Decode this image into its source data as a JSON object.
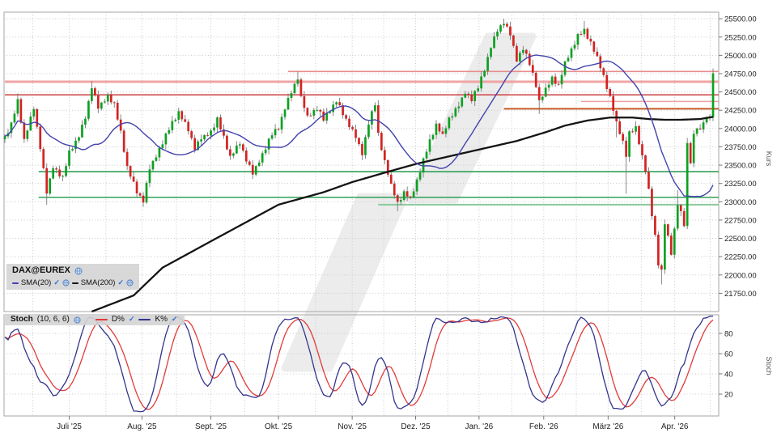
{
  "main_legend": {
    "title": "DAX@EUREX",
    "items": [
      {
        "label": "SMA(20)",
        "swatch": "#4343AE"
      },
      {
        "label": "SMA(200)",
        "swatch": "#141414"
      }
    ]
  },
  "stoch_legend": {
    "title": "Stoch",
    "params": "(10, 6, 6)",
    "items": [
      {
        "label": "D%",
        "swatch": "#E23B3B"
      },
      {
        "label": "K%",
        "swatch": "#34348C"
      }
    ]
  },
  "axes": {
    "kurs_label": "Kurs",
    "stoch_label": "Stoch",
    "x_tick_labels": [
      "Juli '25",
      "Aug. '25",
      "Sept. '25",
      "Okt. '25",
      "Nov. '25",
      "Dez. '25",
      "Jan. '26",
      "Feb. '26",
      "März '26",
      "Apr. '26"
    ]
  },
  "colors": {
    "candle_up": "#0CA122",
    "candle_down": "#D42222",
    "wick": "#7a7a7a",
    "sma20": "#4343AE",
    "sma200": "#141414",
    "stoch_d": "#E23B3B",
    "stoch_k": "#34348C",
    "grid": "#C9C9C9",
    "border": "#A6A6A6",
    "tick_text": "#222222",
    "axis_title": "#555555",
    "watermark": "#ECECEC"
  },
  "chart_data": {
    "type": "candlestick",
    "title": "DAX@EUREX",
    "x_axis": {
      "n_days": 221,
      "major_ticks": [
        {
          "d": 20.0,
          "label": "Juli '25"
        },
        {
          "d": 42.6,
          "label": "Aug. '25"
        },
        {
          "d": 64.0,
          "label": "Sept. '25"
        },
        {
          "d": 85.0,
          "label": "Okt. '25"
        },
        {
          "d": 107.9,
          "label": "Nov. '25"
        },
        {
          "d": 127.6,
          "label": "Dez. '25"
        },
        {
          "d": 147.3,
          "label": "Jan. '26"
        },
        {
          "d": 167.4,
          "label": "Feb. '26"
        },
        {
          "d": 187.4,
          "label": "März '26"
        },
        {
          "d": 208.1,
          "label": "Apr. '26"
        }
      ],
      "minor_grid_d": [
        8.7,
        31.4,
        53.3,
        74.5,
        96.5,
        117.7,
        137.6,
        157.5,
        177.5,
        197.7,
        219.1
      ]
    },
    "panels": [
      {
        "name": "price",
        "ylabel": "Kurs",
        "ylim": [
          21500,
          25590
        ],
        "y_tick_step": 250,
        "y_ticks": [
          "25500.00",
          "25250.00",
          "25000.00",
          "24750.00",
          "24500.00",
          "24250.00",
          "24000.00",
          "23750.00",
          "23500.00",
          "23250.00",
          "23000.00",
          "22750.00",
          "22500.00",
          "22250.00",
          "22000.00",
          "21750.00"
        ],
        "candles": {
          "close_waypoints": [
            [
              0,
              23880
            ],
            [
              2,
              24050
            ],
            [
              4,
              24380
            ],
            [
              6,
              23850
            ],
            [
              9,
              24280
            ],
            [
              11,
              23750
            ],
            [
              13,
              23120
            ],
            [
              15,
              23480
            ],
            [
              18,
              23320
            ],
            [
              20,
              23680
            ],
            [
              23,
              23900
            ],
            [
              25,
              24150
            ],
            [
              27,
              24580
            ],
            [
              29,
              24280
            ],
            [
              32,
              24450
            ],
            [
              34,
              24320
            ],
            [
              36,
              23950
            ],
            [
              38,
              23480
            ],
            [
              41,
              23130
            ],
            [
              43,
              23020
            ],
            [
              45,
              23450
            ],
            [
              48,
              23720
            ],
            [
              50,
              23900
            ],
            [
              52,
              24080
            ],
            [
              54,
              24230
            ],
            [
              57,
              23980
            ],
            [
              59,
              23740
            ],
            [
              61,
              23860
            ],
            [
              64,
              23960
            ],
            [
              66,
              24120
            ],
            [
              68,
              23880
            ],
            [
              70,
              23620
            ],
            [
              73,
              23800
            ],
            [
              75,
              23580
            ],
            [
              77,
              23380
            ],
            [
              80,
              23650
            ],
            [
              83,
              23920
            ],
            [
              85,
              24020
            ],
            [
              87,
              24280
            ],
            [
              89,
              24500
            ],
            [
              91,
              24700
            ],
            [
              92,
              24420
            ],
            [
              94,
              24160
            ],
            [
              97,
              24280
            ],
            [
              99,
              24120
            ],
            [
              101,
              24260
            ],
            [
              103,
              24380
            ],
            [
              105,
              24200
            ],
            [
              107,
              24050
            ],
            [
              109,
              23880
            ],
            [
              111,
              23660
            ],
            [
              113,
              24080
            ],
            [
              115,
              24330
            ],
            [
              116,
              23920
            ],
            [
              118,
              23560
            ],
            [
              120,
              23220
            ],
            [
              122,
              22990
            ],
            [
              124,
              23120
            ],
            [
              126,
              23040
            ],
            [
              128,
              23290
            ],
            [
              130,
              23560
            ],
            [
              132,
              23830
            ],
            [
              134,
              24060
            ],
            [
              136,
              23900
            ],
            [
              138,
              24140
            ],
            [
              141,
              24310
            ],
            [
              143,
              24500
            ],
            [
              145,
              24400
            ],
            [
              147,
              24560
            ],
            [
              149,
              24820
            ],
            [
              151,
              25120
            ],
            [
              153,
              25340
            ],
            [
              155,
              25460
            ],
            [
              157,
              25280
            ],
            [
              159,
              24940
            ],
            [
              161,
              25100
            ],
            [
              163,
              24880
            ],
            [
              165,
              24600
            ],
            [
              166,
              24380
            ],
            [
              168,
              24530
            ],
            [
              170,
              24700
            ],
            [
              172,
              24580
            ],
            [
              174,
              24900
            ],
            [
              176,
              25080
            ],
            [
              178,
              25260
            ],
            [
              180,
              25340
            ],
            [
              182,
              25180
            ],
            [
              184,
              24960
            ],
            [
              186,
              24720
            ],
            [
              188,
              24420
            ],
            [
              190,
              24080
            ],
            [
              192,
              23820
            ],
            [
              193,
              23640
            ],
            [
              194,
              23930
            ],
            [
              196,
              24010
            ],
            [
              197,
              23820
            ],
            [
              199,
              23430
            ],
            [
              200,
              23150
            ],
            [
              201,
              22820
            ],
            [
              202,
              22540
            ],
            [
              203,
              22160
            ],
            [
              204,
              22050
            ],
            [
              205,
              22700
            ],
            [
              206,
              22520
            ],
            [
              207,
              22300
            ],
            [
              208,
              22620
            ],
            [
              209,
              22980
            ],
            [
              210,
              22840
            ],
            [
              211,
              22680
            ],
            [
              212,
              23780
            ],
            [
              213,
              23560
            ],
            [
              214,
              23920
            ],
            [
              215,
              24020
            ],
            [
              216,
              23960
            ],
            [
              217,
              24100
            ],
            [
              218,
              24140
            ],
            [
              219,
              24180
            ],
            [
              220,
              24730
            ]
          ],
          "wiggle_pattern": [
            14,
            -26,
            32,
            -12,
            22,
            -34,
            8,
            -20,
            28,
            -16,
            10,
            -30,
            24,
            -8,
            18,
            -24
          ],
          "wick_hi_pattern": [
            28,
            55,
            15,
            40,
            70,
            22,
            48,
            12,
            60,
            35,
            18,
            45,
            25,
            65,
            10,
            38
          ],
          "wick_lo_pattern": [
            40,
            18,
            60,
            25,
            12,
            50,
            30,
            68,
            20,
            42,
            15,
            55,
            35,
            8,
            48,
            28
          ],
          "spikes": [
            {
              "d": 4,
              "high": 24480
            },
            {
              "d": 13,
              "low": 22960
            },
            {
              "d": 27,
              "high": 24650
            },
            {
              "d": 43,
              "low": 22930
            },
            {
              "d": 91,
              "high": 24780
            },
            {
              "d": 111,
              "low": 23570
            },
            {
              "d": 122,
              "low": 22870
            },
            {
              "d": 155,
              "high": 25500
            },
            {
              "d": 166,
              "low": 24200
            },
            {
              "d": 180,
              "high": 25470
            },
            {
              "d": 190,
              "low": 23880
            },
            {
              "d": 193,
              "low": 23110
            },
            {
              "d": 204,
              "low": 21870
            },
            {
              "d": 209,
              "high": 23160
            },
            {
              "d": 220,
              "high": 24820
            },
            {
              "d": 220,
              "low": 24100
            }
          ]
        },
        "overlays": [
          {
            "name": "SMA(20)",
            "type": "sma",
            "window": 20,
            "color": "#4343AE"
          },
          {
            "name": "SMA(200)",
            "type": "waypoints",
            "color": "#141414",
            "points": [
              [
                27,
                21500
              ],
              [
                40,
                21720
              ],
              [
                49,
                22100
              ],
              [
                64,
                22460
              ],
              [
                85,
                22960
              ],
              [
                99,
                23130
              ],
              [
                108,
                23270
              ],
              [
                119,
                23410
              ],
              [
                128,
                23520
              ],
              [
                139,
                23630
              ],
              [
                148,
                23720
              ],
              [
                159,
                23830
              ],
              [
                168,
                23950
              ],
              [
                174,
                24040
              ],
              [
                181,
                24110
              ],
              [
                188,
                24150
              ],
              [
                195,
                24150
              ],
              [
                200,
                24130
              ],
              [
                205,
                24120
              ],
              [
                210,
                24120
              ],
              [
                216,
                24130
              ],
              [
                220,
                24160
              ]
            ]
          }
        ],
        "levels": [
          {
            "price": 24780,
            "from_d": 88,
            "color": "#E98C8C",
            "width": 1.6
          },
          {
            "price": 24640,
            "from_d": 0,
            "color": "#F0A4A4",
            "width": 3
          },
          {
            "price": 24460,
            "from_d": 0,
            "color": "#D05050",
            "width": 1.6
          },
          {
            "price": 24370,
            "from_d": 179,
            "color": "#EFA0A0",
            "width": 1.6
          },
          {
            "price": 24270,
            "from_d": 155,
            "color": "#C3501A",
            "width": 1.8
          },
          {
            "price": 23410,
            "from_d": 10.5,
            "color": "#2FA054",
            "width": 1.6
          },
          {
            "price": 23060,
            "from_d": 10.5,
            "color": "#2FA054",
            "width": 1.6
          },
          {
            "price": 22960,
            "from_d": 116,
            "color": "#8FCB9F",
            "width": 2.2
          }
        ]
      },
      {
        "name": "stoch",
        "ylabel": "Stoch",
        "params": [
          10,
          6,
          6
        ],
        "ylim": [
          -1.6,
          98.4
        ],
        "y_ticks": [
          20,
          40,
          60,
          80
        ],
        "series": [
          {
            "name": "D%",
            "color": "#E23B3B"
          },
          {
            "name": "K%",
            "color": "#34348C"
          }
        ]
      }
    ]
  }
}
